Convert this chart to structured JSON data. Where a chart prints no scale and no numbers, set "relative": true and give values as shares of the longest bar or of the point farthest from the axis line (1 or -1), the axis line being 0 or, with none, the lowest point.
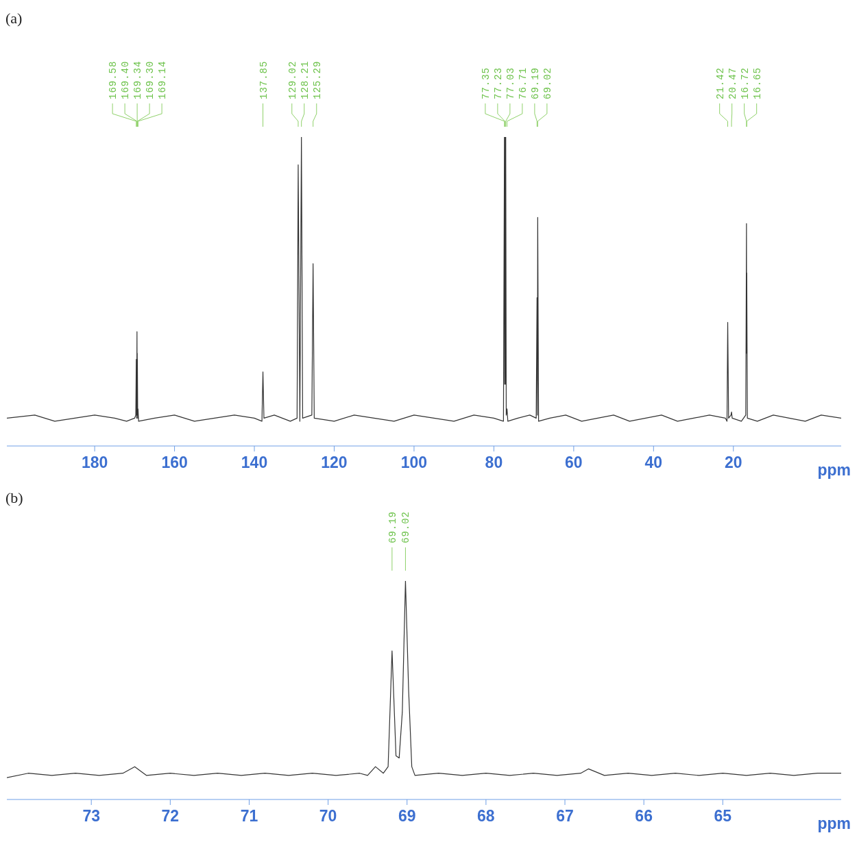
{
  "chart_data": [
    {
      "type": "line",
      "title": "(a)",
      "xlabel": "ppm",
      "relative": true,
      "color": "#333333",
      "tick_labels": "x",
      "grid": false,
      "marker": "none",
      "line_style": "solid",
      "xlim": [
        202,
        -7
      ],
      "xticks": [
        180,
        160,
        140,
        120,
        100,
        80,
        60,
        40,
        20
      ],
      "x": [
        202,
        195,
        190,
        185,
        180,
        175,
        172,
        170,
        169.7,
        169.58,
        169.49,
        169.4,
        169.37,
        169.34,
        169.32,
        169.3,
        169.22,
        169.14,
        169.0,
        165,
        160,
        155,
        150,
        145,
        140,
        138.1,
        137.85,
        137.6,
        135,
        131,
        129.3,
        129.02,
        128.6,
        128.21,
        127.9,
        125.6,
        125.29,
        125.0,
        120,
        115,
        110,
        105,
        100,
        95,
        90,
        85,
        80,
        77.6,
        77.35,
        77.29,
        77.23,
        77.13,
        77.03,
        76.9,
        76.71,
        76.5,
        74,
        71,
        69.4,
        69.19,
        69.1,
        69.02,
        68.8,
        66,
        62,
        58,
        54,
        50,
        46,
        42,
        38,
        34,
        30,
        26,
        22,
        21.6,
        21.42,
        21.2,
        20.6,
        20.47,
        20.3,
        18,
        16.9,
        16.72,
        16.69,
        16.65,
        16.5,
        14,
        10,
        6,
        2,
        -2,
        -7
      ],
      "values": [
        0.09,
        0.1,
        0.08,
        0.09,
        0.1,
        0.09,
        0.08,
        0.09,
        0.1,
        0.28,
        0.09,
        0.37,
        0.1,
        0.3,
        0.1,
        0.28,
        0.09,
        0.12,
        0.08,
        0.09,
        0.1,
        0.08,
        0.09,
        0.1,
        0.09,
        0.08,
        0.24,
        0.09,
        0.1,
        0.08,
        0.09,
        0.91,
        0.08,
        1,
        0.09,
        0.1,
        0.59,
        0.09,
        0.08,
        0.1,
        0.09,
        0.08,
        0.1,
        0.09,
        0.08,
        0.1,
        0.09,
        0.08,
        1,
        0.2,
        1,
        0.2,
        1,
        0.1,
        0.12,
        0.08,
        0.09,
        0.1,
        0.09,
        0.48,
        0.1,
        0.74,
        0.08,
        0.09,
        0.1,
        0.08,
        0.09,
        0.1,
        0.08,
        0.09,
        0.1,
        0.08,
        0.09,
        0.1,
        0.09,
        0.08,
        0.4,
        0.09,
        0.1,
        0.11,
        0.09,
        0.08,
        0.1,
        0.72,
        0.3,
        0.56,
        0.09,
        0.08,
        0.1,
        0.09,
        0.08,
        0.1,
        0.09
      ],
      "annotations": [
        {
          "text": "169.58",
          "x": 169.58
        },
        {
          "text": "169.40",
          "x": 169.4
        },
        {
          "text": "169.34",
          "x": 169.34
        },
        {
          "text": "169.30",
          "x": 169.3
        },
        {
          "text": "169.14",
          "x": 169.14
        },
        {
          "text": "137.85",
          "x": 137.85
        },
        {
          "text": "129.02",
          "x": 129.02
        },
        {
          "text": "128.21",
          "x": 128.21
        },
        {
          "text": "125.29",
          "x": 125.29
        },
        {
          "text": "77.35",
          "x": 77.35
        },
        {
          "text": "77.23",
          "x": 77.23
        },
        {
          "text": "77.03",
          "x": 77.03
        },
        {
          "text": "76.71",
          "x": 76.71
        },
        {
          "text": "69.19",
          "x": 69.19
        },
        {
          "text": "69.02",
          "x": 69.02
        },
        {
          "text": "21.42",
          "x": 21.42
        },
        {
          "text": "20.47",
          "x": 20.47
        },
        {
          "text": "16.72",
          "x": 16.72
        },
        {
          "text": "16.65",
          "x": 16.65
        }
      ]
    },
    {
      "type": "line",
      "title": "(b)",
      "xlabel": "ppm",
      "relative": true,
      "color": "#333333",
      "tick_labels": "x",
      "grid": false,
      "marker": "none",
      "line_style": "solid",
      "xlim": [
        74.07,
        63.5
      ],
      "xticks": [
        73,
        72,
        71,
        70,
        69,
        68,
        67,
        66,
        65
      ],
      "x": [
        74.07,
        73.8,
        73.5,
        73.2,
        72.9,
        72.6,
        72.45,
        72.3,
        72.0,
        71.7,
        71.4,
        71.1,
        70.8,
        70.5,
        70.2,
        69.9,
        69.6,
        69.5,
        69.4,
        69.3,
        69.24,
        69.19,
        69.14,
        69.1,
        69.06,
        69.02,
        68.98,
        68.94,
        68.9,
        68.6,
        68.3,
        68.0,
        67.7,
        67.4,
        67.1,
        66.8,
        66.7,
        66.5,
        66.2,
        65.9,
        65.6,
        65.3,
        65.0,
        64.7,
        64.4,
        64.1,
        63.8,
        63.5
      ],
      "values": [
        0.1,
        0.12,
        0.11,
        0.12,
        0.11,
        0.12,
        0.15,
        0.11,
        0.12,
        0.11,
        0.12,
        0.11,
        0.12,
        0.11,
        0.12,
        0.11,
        0.12,
        0.11,
        0.15,
        0.12,
        0.15,
        0.68,
        0.2,
        0.19,
        0.4,
        1,
        0.5,
        0.15,
        0.11,
        0.12,
        0.11,
        0.12,
        0.11,
        0.12,
        0.11,
        0.12,
        0.14,
        0.11,
        0.12,
        0.11,
        0.12,
        0.11,
        0.12,
        0.11,
        0.12,
        0.11,
        0.12,
        0.12
      ],
      "annotations": [
        {
          "text": "69.19",
          "x": 69.19
        },
        {
          "text": "69.02",
          "x": 69.02
        }
      ]
    }
  ]
}
